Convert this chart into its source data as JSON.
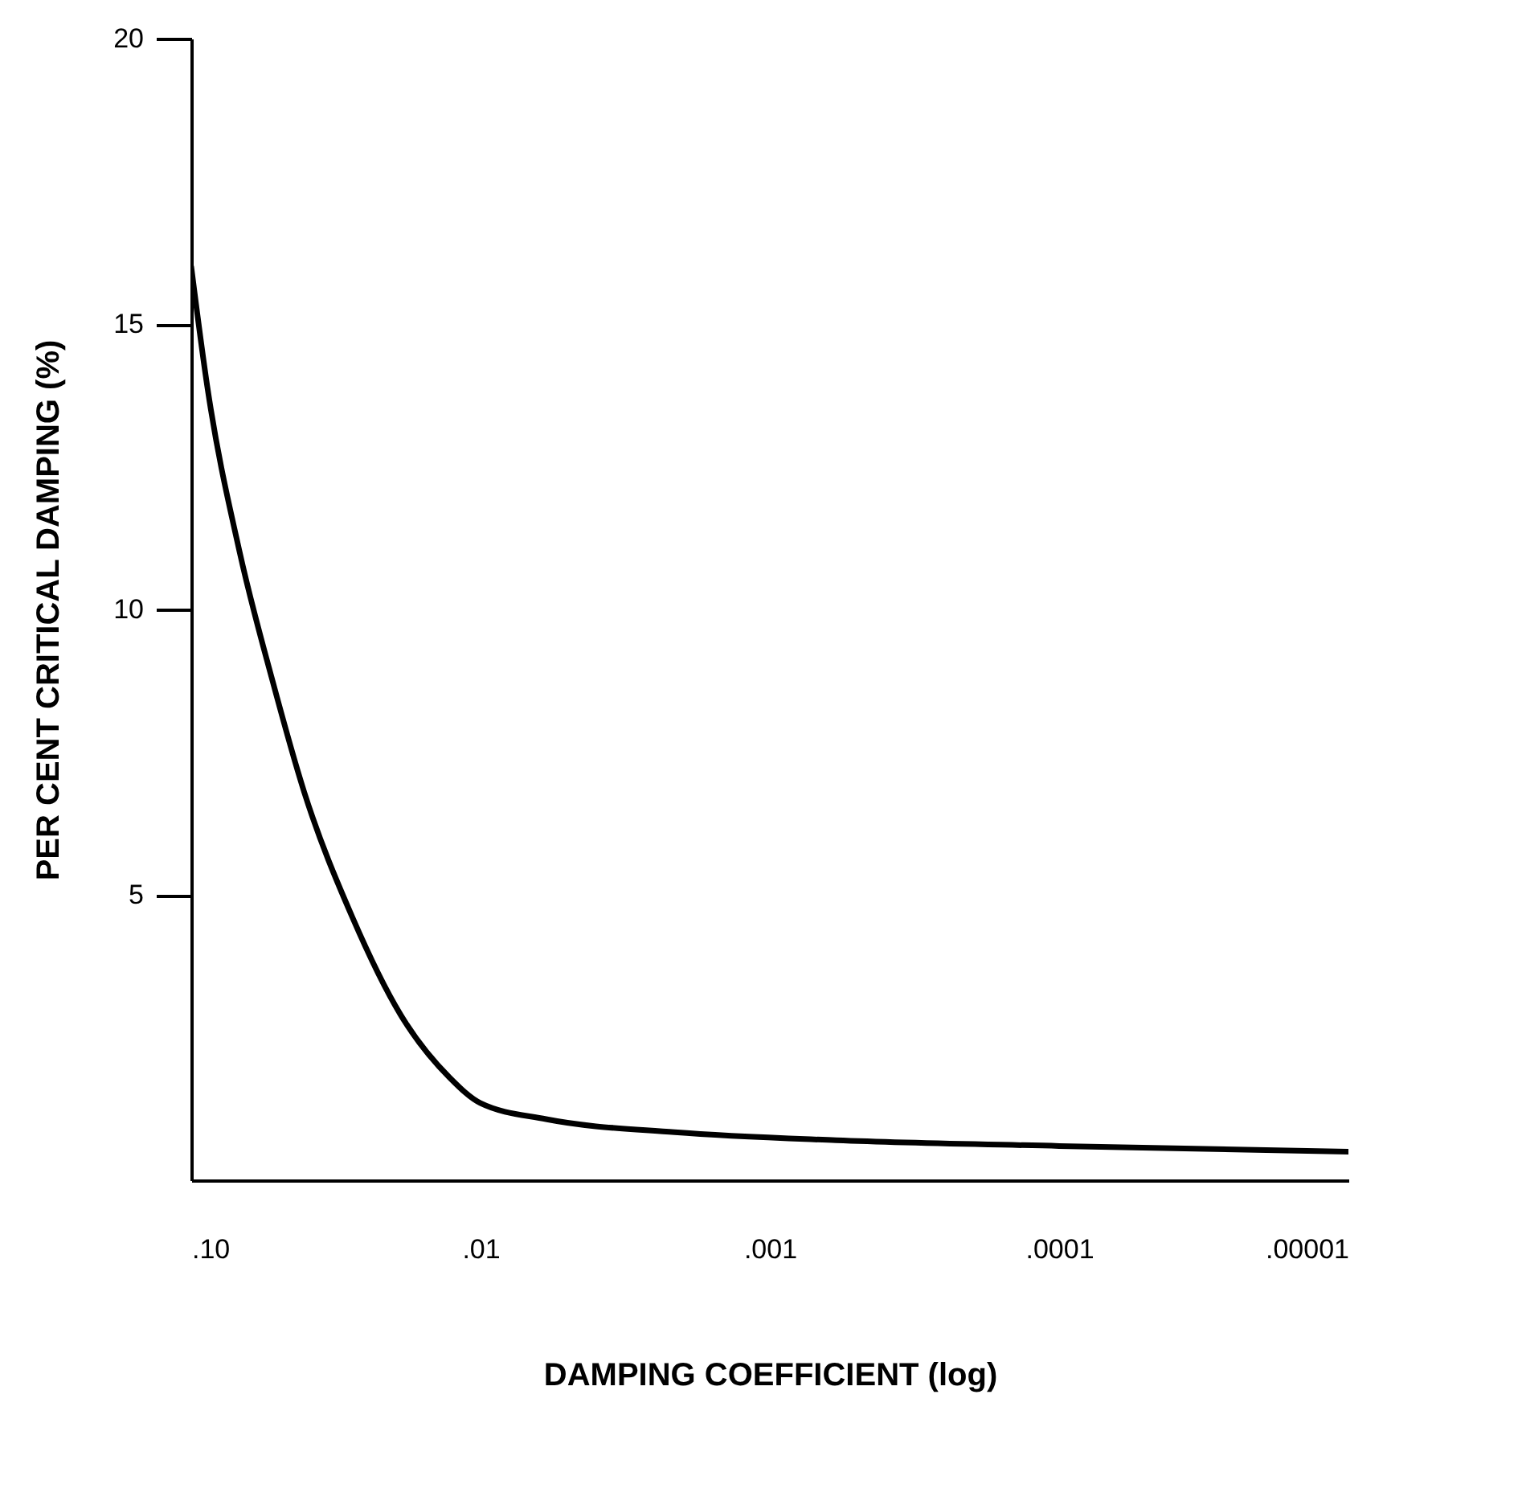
{
  "chart_data": {
    "type": "line",
    "xlabel": "DAMPING  COEFFICIENT (log)",
    "ylabel": "PER CENT  CRITICAL DAMPING (%)",
    "log": "x",
    "grid": false,
    "marker": "none",
    "line_style": "solid",
    "xlim": [
      0.1,
      1e-05
    ],
    "xticks": [
      {
        "value": 0.1,
        "label": ".10"
      },
      {
        "value": 0.01,
        "label": ".01"
      },
      {
        "value": 0.001,
        "label": ".001"
      },
      {
        "value": 0.0001,
        "label": ".0001"
      },
      {
        "value": 1e-05,
        "label": ".00001"
      }
    ],
    "ylim": [
      0,
      20
    ],
    "yticks": [
      5,
      10,
      15,
      20
    ],
    "x": [
      0.1,
      0.088,
      0.068,
      0.0527,
      0.0407,
      0.0277,
      0.0189,
      0.0128,
      0.01,
      0.00594,
      0.00213,
      0.00059,
      0.0001,
      1e-05
    ],
    "series": [
      {
        "color": "#000000",
        "values": [
          16.0,
          13.9,
          11.0,
          8.8,
          6.8,
          4.6,
          2.9,
          1.8,
          1.35,
          1.07,
          0.84,
          0.7,
          0.6,
          0.5
        ]
      }
    ]
  }
}
